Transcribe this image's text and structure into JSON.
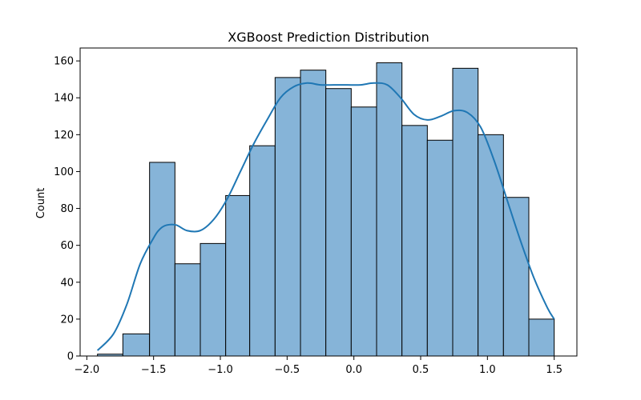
{
  "chart_data": {
    "type": "bar",
    "title": "XGBoost Prediction Distribution",
    "xlabel": "",
    "ylabel": "Count",
    "bins": [
      {
        "left": -1.92,
        "right": -1.73,
        "count": 1
      },
      {
        "left": -1.73,
        "right": -1.53,
        "count": 12
      },
      {
        "left": -1.53,
        "right": -1.34,
        "count": 105
      },
      {
        "left": -1.34,
        "right": -1.15,
        "count": 50
      },
      {
        "left": -1.15,
        "right": -0.96,
        "count": 61
      },
      {
        "left": -0.96,
        "right": -0.78,
        "count": 87
      },
      {
        "left": -0.78,
        "right": -0.59,
        "count": 114
      },
      {
        "left": -0.59,
        "right": -0.4,
        "count": 151
      },
      {
        "left": -0.4,
        "right": -0.21,
        "count": 155
      },
      {
        "left": -0.21,
        "right": -0.02,
        "count": 145
      },
      {
        "left": -0.02,
        "right": 0.17,
        "count": 135
      },
      {
        "left": 0.17,
        "right": 0.36,
        "count": 159
      },
      {
        "left": 0.36,
        "right": 0.55,
        "count": 125
      },
      {
        "left": 0.55,
        "right": 0.74,
        "count": 117
      },
      {
        "left": 0.74,
        "right": 0.93,
        "count": 156
      },
      {
        "left": 0.93,
        "right": 1.12,
        "count": 120
      },
      {
        "left": 1.12,
        "right": 1.31,
        "count": 86
      },
      {
        "left": 1.31,
        "right": 1.5,
        "count": 20
      }
    ],
    "kde": {
      "x": [
        -1.92,
        -1.8,
        -1.7,
        -1.6,
        -1.5,
        -1.45,
        -1.4,
        -1.33,
        -1.25,
        -1.15,
        -1.05,
        -0.95,
        -0.85,
        -0.75,
        -0.65,
        -0.55,
        -0.45,
        -0.35,
        -0.25,
        -0.15,
        -0.05,
        0.05,
        0.15,
        0.25,
        0.35,
        0.45,
        0.55,
        0.65,
        0.75,
        0.85,
        0.95,
        1.05,
        1.15,
        1.25,
        1.35,
        1.45,
        1.5
      ],
      "y": [
        3,
        12,
        28,
        50,
        64,
        69,
        71,
        71,
        68,
        68,
        74,
        85,
        100,
        115,
        128,
        140,
        146,
        148,
        147,
        147,
        147,
        147,
        148,
        147,
        140,
        131,
        128,
        130,
        133,
        132,
        124,
        106,
        84,
        62,
        42,
        26,
        20
      ]
    },
    "xlim": [
      -2.05,
      1.67
    ],
    "ylim": [
      0,
      167
    ],
    "xticks": [
      -2.0,
      -1.5,
      -1.0,
      -0.5,
      0.0,
      0.5,
      1.0,
      1.5
    ],
    "xtick_labels": [
      "−2.0",
      "−1.5",
      "−1.0",
      "−0.5",
      "0.0",
      "0.5",
      "1.0",
      "1.5"
    ],
    "yticks": [
      0,
      20,
      40,
      60,
      80,
      100,
      120,
      140,
      160
    ],
    "ytick_labels": [
      "0",
      "20",
      "40",
      "60",
      "80",
      "100",
      "120",
      "140",
      "160"
    ],
    "grid": false,
    "colors": {
      "bar_fill": "#86b4d8",
      "bar_edge": "#000000",
      "kde_line": "#1f77b4"
    }
  }
}
